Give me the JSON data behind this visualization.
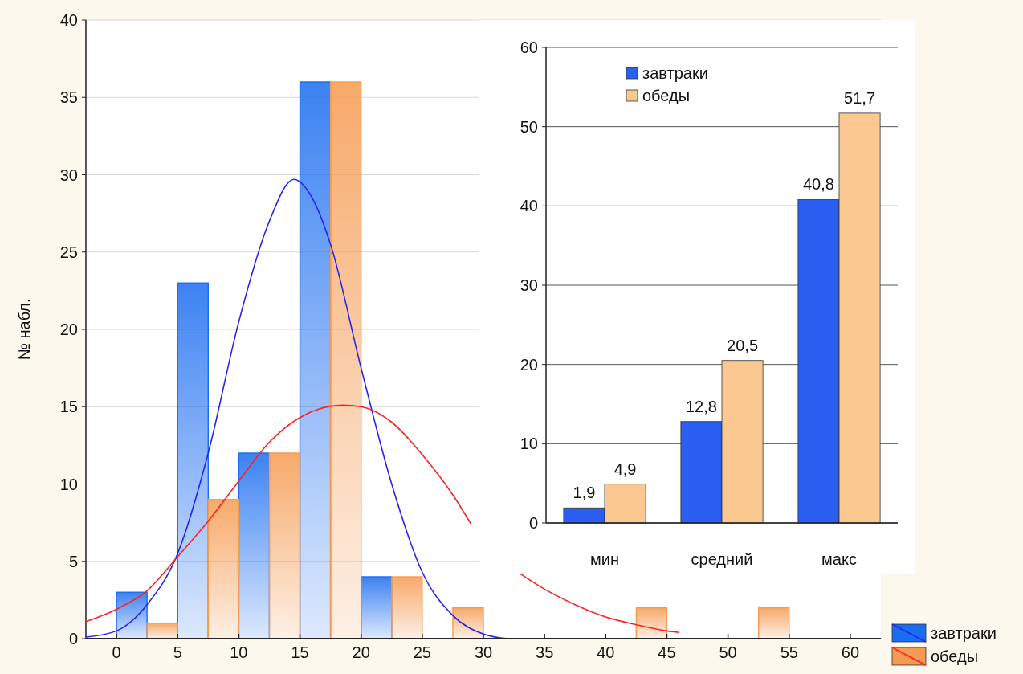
{
  "chart_data": [
    {
      "type": "bar",
      "ylabel": "№ набл.",
      "series": [
        {
          "name": "завтраки",
          "color": "#1a6cf0",
          "x": [
            1.25,
            6.25,
            11.25,
            16.25,
            21.25,
            26.25,
            31.25,
            36.25,
            41.25,
            46.25,
            51.25,
            56.25
          ],
          "values": [
            3,
            23,
            12,
            36,
            4,
            0,
            0,
            0,
            0,
            0,
            0,
            0
          ]
        },
        {
          "name": "обеды",
          "color": "#f59a50",
          "x": [
            3.75,
            8.75,
            13.75,
            18.75,
            23.75,
            28.75,
            33.75,
            38.75,
            43.75,
            48.75,
            53.75,
            58.75
          ],
          "values": [
            1,
            9,
            12,
            36,
            4,
            2,
            0,
            0,
            2,
            0,
            2,
            0
          ]
        },
        {
          "type": "line",
          "color": "#2424f0",
          "x": [
            -2.5,
            0,
            2.5,
            5,
            7.5,
            10,
            12.5,
            14.5,
            16,
            17.5,
            20,
            22.5,
            25,
            27.5,
            30,
            32
          ],
          "values": [
            0.1,
            0.5,
            2.2,
            5.5,
            12,
            20.5,
            27,
            29.7,
            28.5,
            25.5,
            17.5,
            10,
            4.3,
            1.5,
            0.3,
            0
          ]
        },
        {
          "type": "line",
          "color": "#ff2020",
          "x": [
            -2.5,
            0,
            2.5,
            5,
            7.5,
            10,
            12.5,
            15,
            18.5,
            20,
            22.5,
            25,
            27.5,
            29,
            31,
            33,
            35,
            37.5,
            40,
            42.5,
            45,
            46
          ],
          "values": [
            1.1,
            1.9,
            3.1,
            5.3,
            7.6,
            10.2,
            12.7,
            14.3,
            15.1,
            15,
            14,
            11.9,
            9.3,
            7.4,
            null,
            4.2,
            3.2,
            2.2,
            1.4,
            0.9,
            0.5,
            0.4
          ]
        }
      ],
      "xlim": [
        -2.5,
        62.5
      ],
      "xticks": [
        0,
        5,
        10,
        15,
        20,
        25,
        30,
        35,
        40,
        45,
        50,
        55,
        60
      ],
      "ylim": [
        0,
        40
      ],
      "yticks": [
        0,
        5,
        10,
        15,
        20,
        25,
        30,
        35,
        40
      ],
      "grid": "y",
      "legend": "bottom right"
    },
    {
      "type": "bar",
      "categories": [
        "мин",
        "средний",
        "макс"
      ],
      "series": [
        {
          "name": "завтраки",
          "color": "#2a5ef0",
          "values": [
            1.9,
            12.8,
            40.8
          ],
          "value_labels": [
            "1,9",
            "12,8",
            "40,8"
          ]
        },
        {
          "name": "обеды",
          "color": "#fbc892",
          "values": [
            4.9,
            20.5,
            51.7
          ],
          "value_labels": [
            "4,9",
            "20,5",
            "51,7"
          ]
        }
      ],
      "ylim": [
        0,
        60
      ],
      "yticks": [
        0,
        10,
        20,
        30,
        40,
        50,
        60
      ],
      "grid": "y",
      "legend": "top left"
    }
  ]
}
